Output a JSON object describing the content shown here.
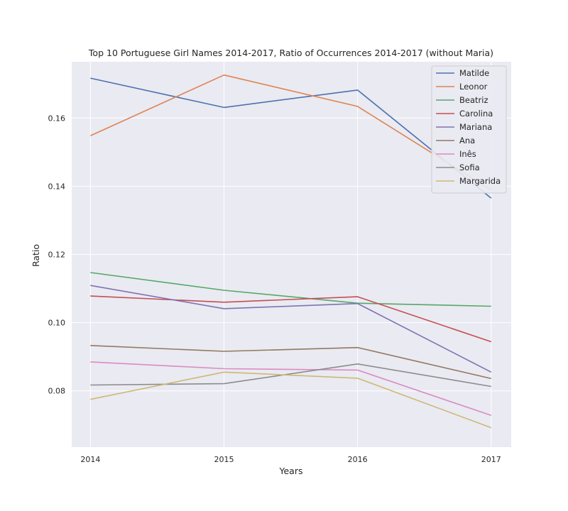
{
  "chart_data": {
    "type": "line",
    "title": "Top 10 Portuguese Girl Names 2014-2017, Ratio of Occurrences 2014-2017 (without Maria)",
    "xlabel": "Years",
    "ylabel": "Ratio",
    "x": [
      2014,
      2015,
      2016,
      2017
    ],
    "x_tick_labels": [
      "2014",
      "2015",
      "2016",
      "2017"
    ],
    "xlim": [
      2013.86,
      2017.15
    ],
    "ylim": [
      0.0635,
      0.1765
    ],
    "y_ticks": [
      0.08,
      0.1,
      0.12,
      0.14,
      0.16
    ],
    "y_tick_labels": [
      "0.08",
      "0.10",
      "0.12",
      "0.14",
      "0.16"
    ],
    "grid": true,
    "legend_position": "top-right",
    "series": [
      {
        "name": "Matilde",
        "color": "#4c72b0",
        "values": [
          0.1717,
          0.1631,
          0.1682,
          0.1365
        ]
      },
      {
        "name": "Leonor",
        "color": "#dd8452",
        "values": [
          0.1548,
          0.1726,
          0.1634,
          0.1389
        ]
      },
      {
        "name": "Beatriz",
        "color": "#55a868",
        "values": [
          0.1147,
          0.1095,
          0.1057,
          0.1048
        ]
      },
      {
        "name": "Carolina",
        "color": "#c44e52",
        "values": [
          0.1078,
          0.106,
          0.1076,
          0.0944
        ]
      },
      {
        "name": "Mariana",
        "color": "#8172b3",
        "values": [
          0.1109,
          0.1041,
          0.1056,
          0.0855
        ]
      },
      {
        "name": "Ana",
        "color": "#937860",
        "values": [
          0.0933,
          0.0916,
          0.0927,
          0.0836
        ]
      },
      {
        "name": "Inês",
        "color": "#da8bc3",
        "values": [
          0.0885,
          0.0865,
          0.0861,
          0.0728
        ]
      },
      {
        "name": "Sofia",
        "color": "#8c8c8c",
        "values": [
          0.0817,
          0.0821,
          0.0879,
          0.0813
        ]
      },
      {
        "name": "Margarida",
        "color": "#ccb974",
        "values": [
          0.0775,
          0.0855,
          0.0837,
          0.0692
        ]
      }
    ]
  }
}
